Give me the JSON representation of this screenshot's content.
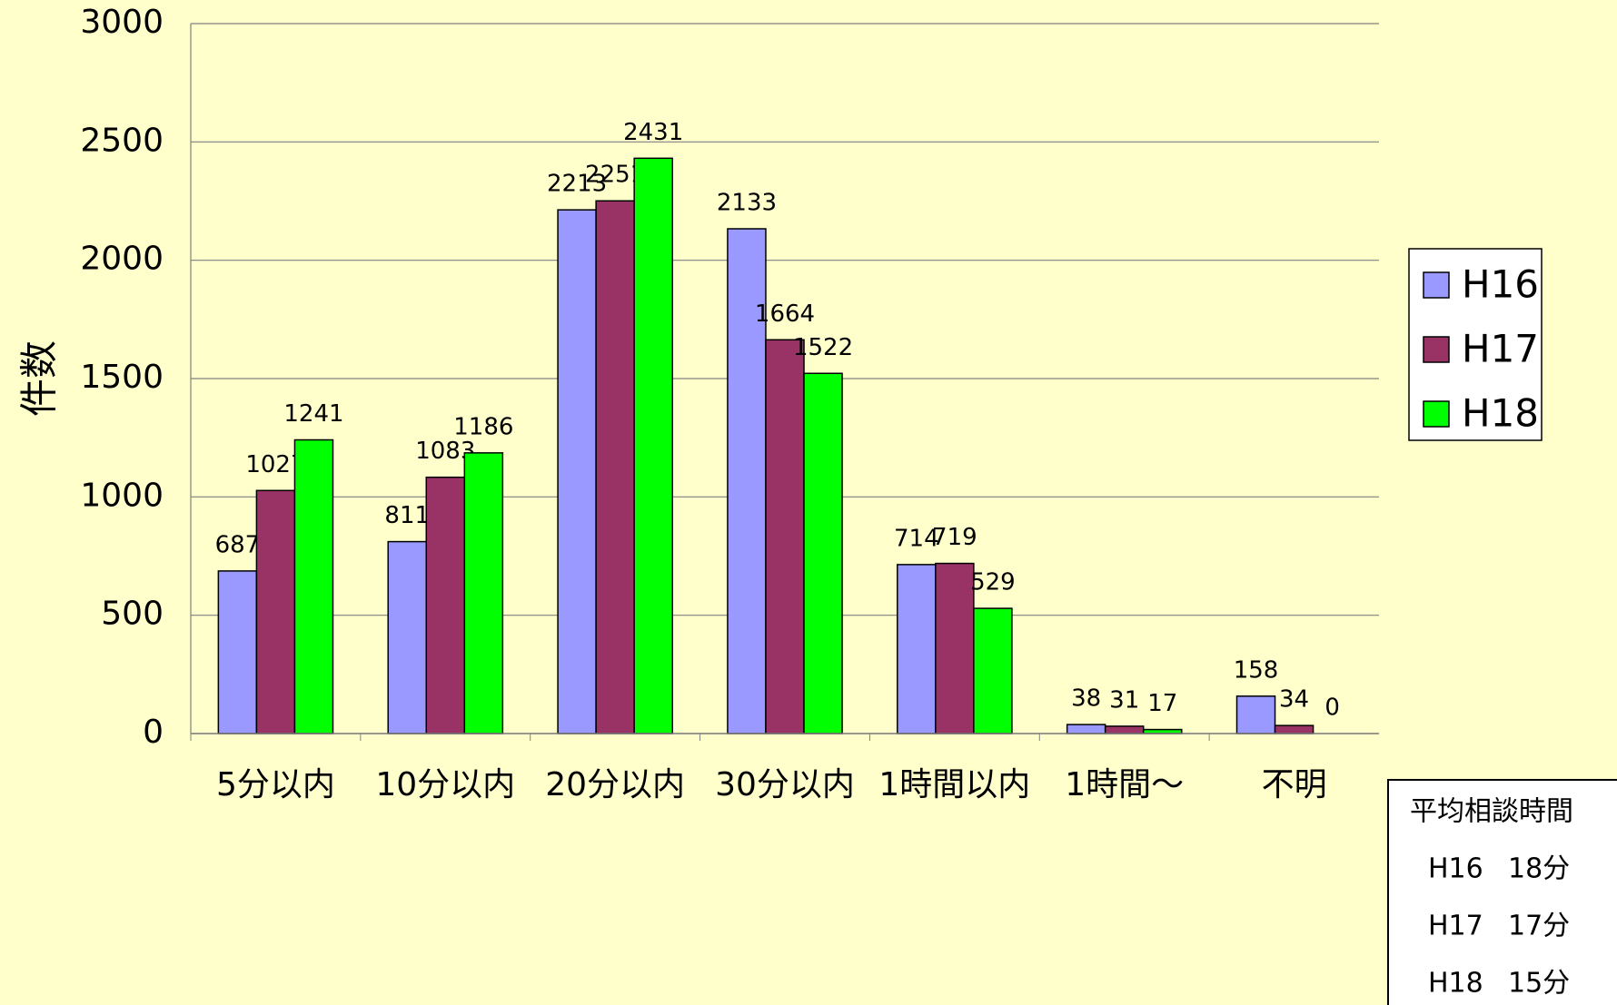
{
  "chart_data": {
    "type": "bar",
    "y_label": "件数",
    "categories": [
      "5分以内",
      "10分以内",
      "20分以内",
      "30分以内",
      "1時間以内",
      "1時間～",
      "不明"
    ],
    "series": [
      {
        "name": "H16",
        "color": "#9999ff",
        "values": [
          687,
          811,
          2213,
          2133,
          714,
          38,
          158
        ]
      },
      {
        "name": "H17",
        "color": "#993366",
        "values": [
          1027,
          1083,
          2251,
          1664,
          719,
          31,
          34
        ]
      },
      {
        "name": "H18",
        "color": "#00ff00",
        "values": [
          1241,
          1186,
          2431,
          1522,
          529,
          17,
          0
        ]
      }
    ],
    "ylim": [
      0,
      3000
    ],
    "yticks": [
      0,
      500,
      1000,
      1500,
      2000,
      2500,
      3000
    ],
    "grid": true,
    "legend": "right",
    "annotation": {
      "title": "平均相談時間",
      "rows": [
        [
          "H16",
          "18分"
        ],
        [
          "H17",
          "17分"
        ],
        [
          "H18",
          "15分"
        ]
      ]
    }
  }
}
